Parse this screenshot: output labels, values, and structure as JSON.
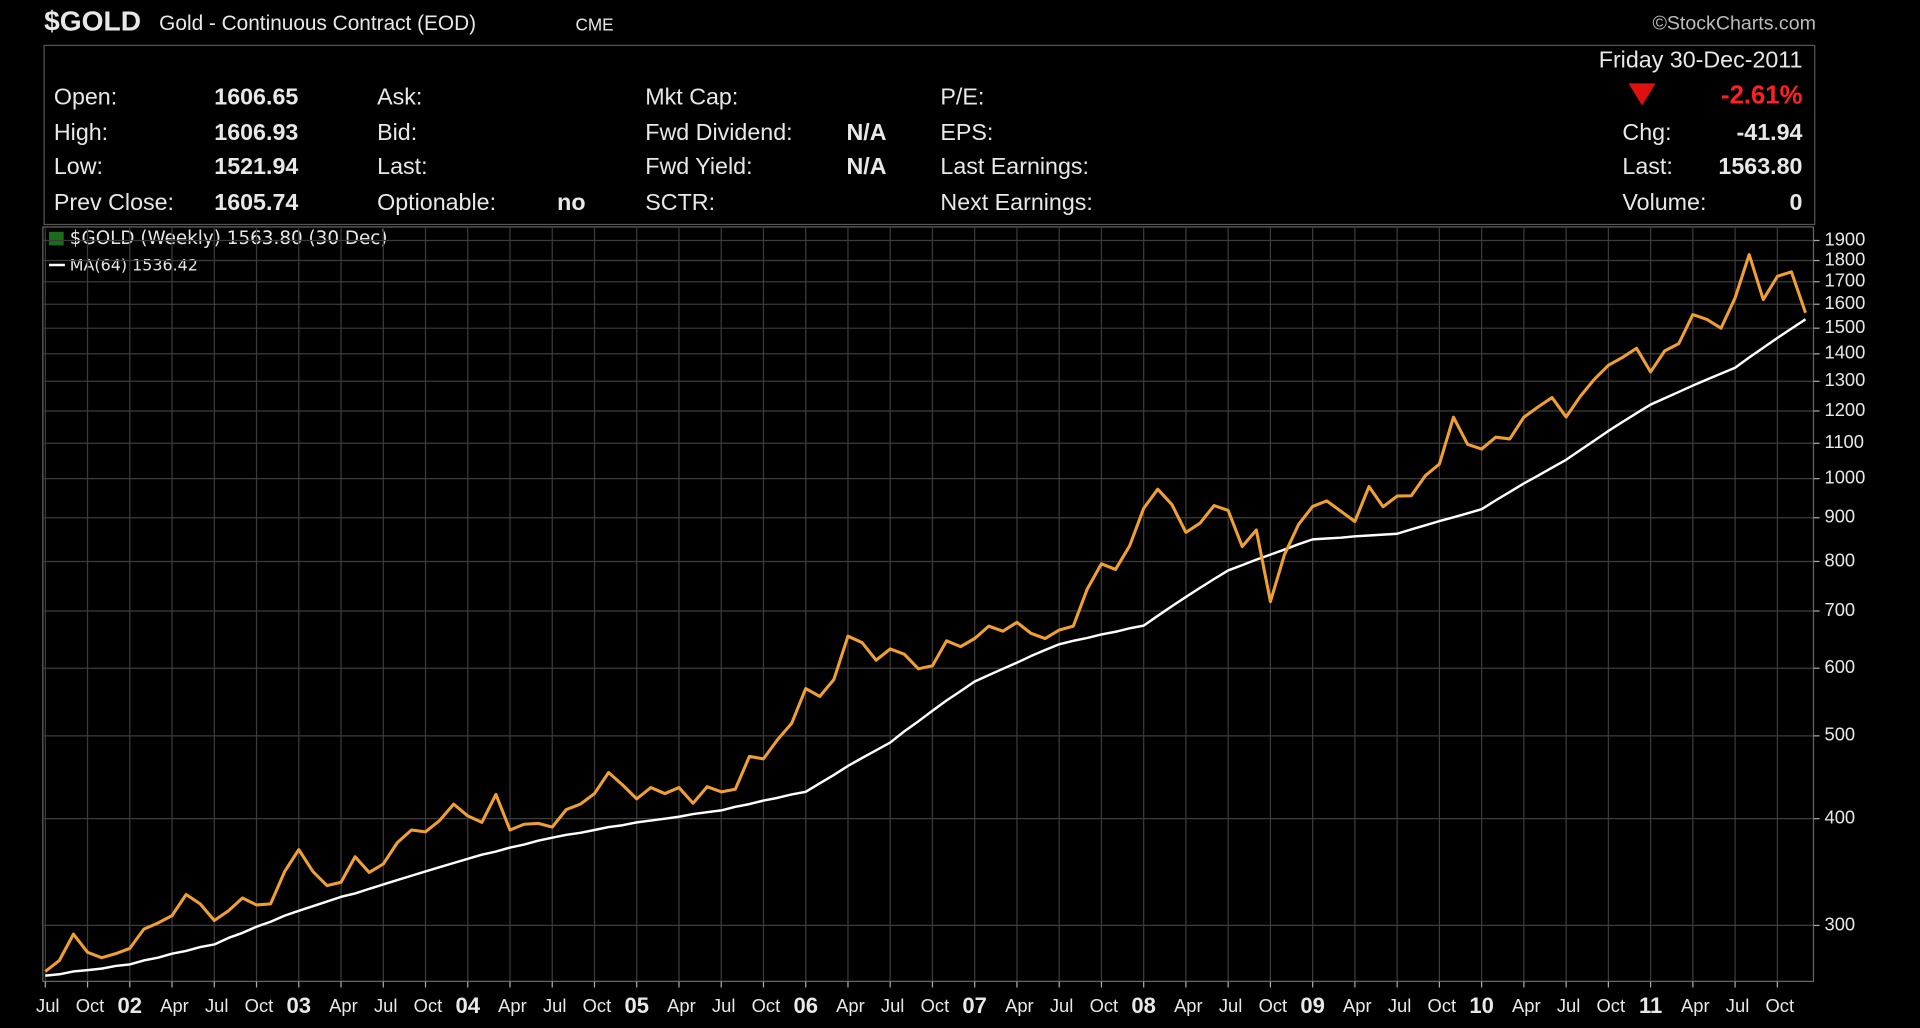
{
  "header": {
    "symbol": "$GOLD",
    "name": "Gold - Continuous Contract (EOD)",
    "exchange": "CME",
    "source": "©StockCharts.com",
    "date": "Friday 30-Dec-2011",
    "change_pct": "-2.61%",
    "columns": [
      [
        {
          "label": "Open:",
          "value": "1606.65"
        },
        {
          "label": "High:",
          "value": "1606.93"
        },
        {
          "label": "Low:",
          "value": "1521.94"
        },
        {
          "label": "Prev Close:",
          "value": "1605.74"
        }
      ],
      [
        {
          "label": "Ask:"
        },
        {
          "label": "Bid:"
        },
        {
          "label": "Last:"
        },
        {
          "label": "Optionable:",
          "value": "no"
        }
      ],
      [
        {
          "label": "Mkt Cap:"
        },
        {
          "label": "Fwd Dividend:",
          "value": "N/A"
        },
        {
          "label": "Fwd Yield:",
          "value": "N/A"
        },
        {
          "label": "SCTR:"
        }
      ],
      [
        {
          "label": "P/E:"
        },
        {
          "label": "EPS:"
        },
        {
          "label": "Last Earnings:"
        },
        {
          "label": "Next Earnings:"
        }
      ],
      [
        {
          "label": "Chg:",
          "value": "-41.94"
        },
        {
          "label": "Last:",
          "value": "1563.80"
        },
        {
          "label": "Volume:",
          "value": "0"
        }
      ]
    ]
  },
  "chart_data": {
    "type": "line",
    "log_scale": true,
    "grid": true,
    "x": [
      "2001-07",
      "2001-08",
      "2001-09",
      "2001-10",
      "2001-11",
      "2001-12",
      "2002-01",
      "2002-02",
      "2002-03",
      "2002-04",
      "2002-05",
      "2002-06",
      "2002-07",
      "2002-08",
      "2002-09",
      "2002-10",
      "2002-11",
      "2002-12",
      "2003-01",
      "2003-02",
      "2003-03",
      "2003-04",
      "2003-05",
      "2003-06",
      "2003-07",
      "2003-08",
      "2003-09",
      "2003-10",
      "2003-11",
      "2003-12",
      "2004-01",
      "2004-02",
      "2004-03",
      "2004-04",
      "2004-05",
      "2004-06",
      "2004-07",
      "2004-08",
      "2004-09",
      "2004-10",
      "2004-11",
      "2004-12",
      "2005-01",
      "2005-02",
      "2005-03",
      "2005-04",
      "2005-05",
      "2005-06",
      "2005-07",
      "2005-08",
      "2005-09",
      "2005-10",
      "2005-11",
      "2005-12",
      "2006-01",
      "2006-02",
      "2006-03",
      "2006-04",
      "2006-05",
      "2006-06",
      "2006-07",
      "2006-08",
      "2006-09",
      "2006-10",
      "2006-11",
      "2006-12",
      "2007-01",
      "2007-02",
      "2007-03",
      "2007-04",
      "2007-05",
      "2007-06",
      "2007-07",
      "2007-08",
      "2007-09",
      "2007-10",
      "2007-11",
      "2007-12",
      "2008-01",
      "2008-02",
      "2008-03",
      "2008-04",
      "2008-05",
      "2008-06",
      "2008-07",
      "2008-08",
      "2008-09",
      "2008-10",
      "2008-11",
      "2008-12",
      "2009-01",
      "2009-02",
      "2009-03",
      "2009-04",
      "2009-05",
      "2009-06",
      "2009-07",
      "2009-08",
      "2009-09",
      "2009-10",
      "2009-11",
      "2009-12",
      "2010-01",
      "2010-02",
      "2010-03",
      "2010-04",
      "2010-05",
      "2010-06",
      "2010-07",
      "2010-08",
      "2010-09",
      "2010-10",
      "2010-11",
      "2010-12",
      "2011-01",
      "2011-02",
      "2011-03",
      "2011-04",
      "2011-05",
      "2011-06",
      "2011-07",
      "2011-08",
      "2011-09",
      "2011-10",
      "2011-11",
      "2011-12"
    ],
    "series": [
      {
        "name": "$GOLD (Weekly) 1563.80 (30 Dec)",
        "color": "#f0a030",
        "values": [
          265,
          273,
          293,
          279,
          275,
          278,
          282,
          297,
          302,
          308,
          326,
          318,
          304,
          312,
          323,
          317,
          318,
          347,
          368,
          347,
          334,
          337,
          361,
          346,
          354,
          375,
          388,
          386,
          398,
          416,
          403,
          396,
          427,
          388,
          394,
          395,
          391,
          410,
          416,
          428,
          453,
          438,
          422,
          435,
          428,
          435,
          417,
          436,
          430,
          433,
          473,
          470,
          495,
          517,
          568,
          556,
          582,
          654,
          643,
          613,
          632,
          623,
          599,
          604,
          646,
          636,
          650,
          672,
          663,
          679,
          659,
          650,
          665,
          672,
          743,
          795,
          783,
          834,
          923,
          972,
          933,
          865,
          887,
          930,
          918,
          833,
          871,
          718,
          815,
          884,
          928,
          942,
          916,
          891,
          979,
          927,
          954,
          955,
          1008,
          1040,
          1180,
          1097,
          1083,
          1118,
          1113,
          1180,
          1213,
          1244,
          1181,
          1248,
          1307,
          1357,
          1386,
          1421,
          1333,
          1411,
          1439,
          1556,
          1536,
          1500,
          1628,
          1829,
          1620,
          1725,
          1746,
          1563.8
        ]
      },
      {
        "name": "MA(64) 1536.42",
        "color": "#ffffff",
        "values": [
          262,
          263,
          265,
          266,
          267,
          269,
          270,
          273,
          275,
          278,
          280,
          283,
          285,
          290,
          294,
          299,
          303,
          308,
          312,
          316,
          320,
          324,
          327,
          331,
          335,
          339,
          343,
          347,
          351,
          355,
          359,
          363,
          366,
          370,
          373,
          377,
          380,
          383,
          385,
          388,
          391,
          393,
          396,
          398,
          400,
          402,
          405,
          407,
          409,
          413,
          416,
          420,
          423,
          427,
          430,
          440,
          450,
          461,
          471,
          481,
          491,
          506,
          520,
          535,
          550,
          564,
          579,
          589,
          599,
          609,
          620,
          630,
          640,
          646,
          651,
          657,
          662,
          668,
          673,
          691,
          709,
          727,
          745,
          763,
          781,
          792,
          804,
          815,
          826,
          838,
          849,
          851,
          853,
          856,
          858,
          860,
          862,
          872,
          882,
          892,
          901,
          911,
          921,
          943,
          965,
          987,
          1008,
          1030,
          1052,
          1080,
          1108,
          1137,
          1165,
          1193,
          1221,
          1242,
          1263,
          1285,
          1306,
          1327,
          1348,
          1386,
          1423,
          1461,
          1498,
          1536.42
        ]
      }
    ],
    "ylim": [
      258,
      1964
    ],
    "yticks": [
      300,
      400,
      500,
      600,
      700,
      800,
      900,
      1000,
      1100,
      1200,
      1300,
      1400,
      1500,
      1600,
      1700,
      1800,
      1900
    ],
    "xticks": [
      {
        "value": "2001-07",
        "label": "Jul"
      },
      {
        "value": "2001-10",
        "label": "Oct"
      },
      {
        "value": "2002-01",
        "label": "02"
      },
      {
        "value": "2002-04",
        "label": "Apr"
      },
      {
        "value": "2002-07",
        "label": "Jul"
      },
      {
        "value": "2002-10",
        "label": "Oct"
      },
      {
        "value": "2003-01",
        "label": "03"
      },
      {
        "value": "2003-04",
        "label": "Apr"
      },
      {
        "value": "2003-07",
        "label": "Jul"
      },
      {
        "value": "2003-10",
        "label": "Oct"
      },
      {
        "value": "2004-01",
        "label": "04"
      },
      {
        "value": "2004-04",
        "label": "Apr"
      },
      {
        "value": "2004-07",
        "label": "Jul"
      },
      {
        "value": "2004-10",
        "label": "Oct"
      },
      {
        "value": "2005-01",
        "label": "05"
      },
      {
        "value": "2005-04",
        "label": "Apr"
      },
      {
        "value": "2005-07",
        "label": "Jul"
      },
      {
        "value": "2005-10",
        "label": "Oct"
      },
      {
        "value": "2006-01",
        "label": "06"
      },
      {
        "value": "2006-04",
        "label": "Apr"
      },
      {
        "value": "2006-07",
        "label": "Jul"
      },
      {
        "value": "2006-10",
        "label": "Oct"
      },
      {
        "value": "2007-01",
        "label": "07"
      },
      {
        "value": "2007-04",
        "label": "Apr"
      },
      {
        "value": "2007-07",
        "label": "Jul"
      },
      {
        "value": "2007-10",
        "label": "Oct"
      },
      {
        "value": "2008-01",
        "label": "08"
      },
      {
        "value": "2008-04",
        "label": "Apr"
      },
      {
        "value": "2008-07",
        "label": "Jul"
      },
      {
        "value": "2008-10",
        "label": "Oct"
      },
      {
        "value": "2009-01",
        "label": "09"
      },
      {
        "value": "2009-04",
        "label": "Apr"
      },
      {
        "value": "2009-07",
        "label": "Jul"
      },
      {
        "value": "2009-10",
        "label": "Oct"
      },
      {
        "value": "2010-01",
        "label": "10"
      },
      {
        "value": "2010-04",
        "label": "Apr"
      },
      {
        "value": "2010-07",
        "label": "Jul"
      },
      {
        "value": "2010-10",
        "label": "Oct"
      },
      {
        "value": "2011-01",
        "label": "11"
      },
      {
        "value": "2011-04",
        "label": "Apr"
      },
      {
        "value": "2011-07",
        "label": "Jul"
      },
      {
        "value": "2011-10",
        "label": "Oct"
      }
    ]
  }
}
